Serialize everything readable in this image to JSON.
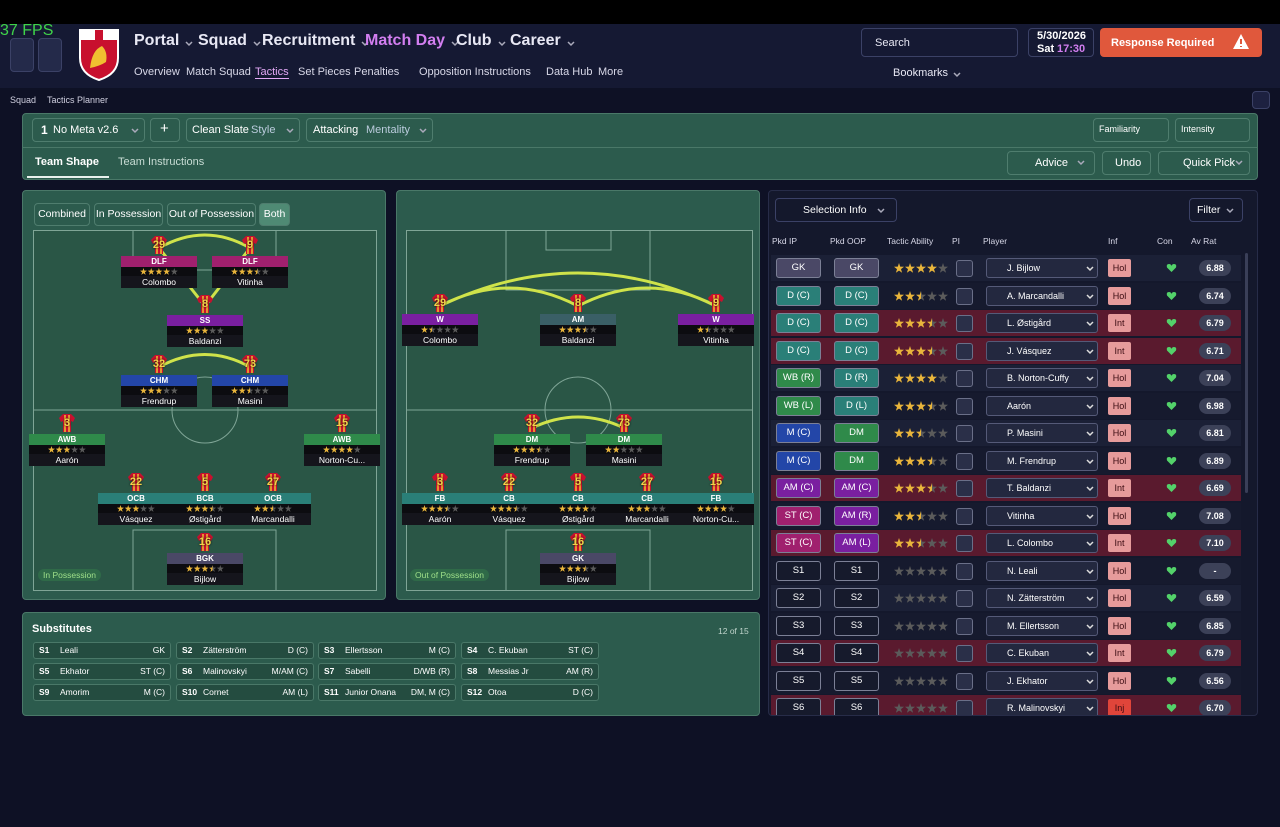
{
  "fps": "37 FPS",
  "nav": {
    "main": [
      "Portal",
      "Squad",
      "Recruitment",
      "Match Day",
      "Club",
      "Career"
    ],
    "active_main": 3,
    "sub": [
      "Overview",
      "Match Squad",
      "Tactics",
      "Set Pieces",
      "Penalties",
      "Opposition Instructions",
      "Data Hub",
      "More"
    ],
    "active_sub": 2
  },
  "header": {
    "search": "Search",
    "date": "5/30/2026",
    "day": "Sat",
    "time": "17:30",
    "alert": "Response Required",
    "bookmarks": "Bookmarks"
  },
  "breadcrumb": [
    "Squad",
    "Tactics Planner"
  ],
  "toolbar": {
    "slot": "1",
    "tactic": "No Meta v2.6",
    "add": "+",
    "style": "Clean Slate",
    "style_label": "Style",
    "mentality": "Attacking",
    "mentality_label": "Mentality",
    "familiarity": "Familiarity",
    "intensity": "Intensity"
  },
  "tabs": [
    "Team Shape",
    "Team Instructions"
  ],
  "active_tab": 0,
  "actions": [
    "Advice",
    "Undo",
    "Quick Pick"
  ],
  "view_filters": [
    "Combined",
    "In Possession",
    "Out of Possession",
    "Both"
  ],
  "active_filter": 3,
  "pitches": [
    {
      "label": "In Possession",
      "players": [
        {
          "number": 29,
          "role": "DLF",
          "name": "Colombo",
          "rating": 4,
          "color": "#a0206e"
        },
        {
          "number": 9,
          "role": "DLF",
          "name": "Vitinha",
          "rating": 3.5,
          "color": "#a0206e"
        },
        {
          "number": 8,
          "role": "SS",
          "name": "Baldanzi",
          "rating": 3,
          "color": "#7a1fa0"
        },
        {
          "number": 32,
          "role": "CHM",
          "name": "Frendrup",
          "rating": 3,
          "color": "#2346a8"
        },
        {
          "number": 73,
          "role": "CHM",
          "name": "Masini",
          "rating": 2.5,
          "color": "#2346a8"
        },
        {
          "number": 3,
          "role": "AWB",
          "name": "Aarón",
          "rating": 3,
          "color": "#2f8a4a"
        },
        {
          "number": 15,
          "role": "AWB",
          "name": "Norton-Cu...",
          "rating": 4,
          "color": "#2f8a4a"
        },
        {
          "number": 22,
          "role": "OCB",
          "name": "Vásquez",
          "rating": 3,
          "color": "#2a7f78"
        },
        {
          "number": 5,
          "role": "BCB",
          "name": "Østigård",
          "rating": 3.5,
          "color": "#2a7f78"
        },
        {
          "number": 27,
          "role": "OCB",
          "name": "Marcandalli",
          "rating": 2.5,
          "color": "#2a7f78"
        },
        {
          "number": 16,
          "role": "BGK",
          "name": "Bijlow",
          "rating": 3.5,
          "color": "#4a4866"
        }
      ]
    },
    {
      "label": "Out of Possession",
      "players": [
        {
          "number": 29,
          "role": "W",
          "name": "Colombo",
          "rating": 1.5,
          "color": "#7a1fa0"
        },
        {
          "number": 8,
          "role": "AM",
          "name": "Baldanzi",
          "rating": 3.5,
          "color": "#3a5f66"
        },
        {
          "number": 9,
          "role": "W",
          "name": "Vitinha",
          "rating": 1.5,
          "color": "#7a1fa0"
        },
        {
          "number": 32,
          "role": "DM",
          "name": "Frendrup",
          "rating": 3.5,
          "color": "#2f8a4a"
        },
        {
          "number": 73,
          "role": "DM",
          "name": "Masini",
          "rating": 2,
          "color": "#2f8a4a"
        },
        {
          "number": 3,
          "role": "FB",
          "name": "Aarón",
          "rating": 3.5,
          "color": "#2a7f78"
        },
        {
          "number": 22,
          "role": "CB",
          "name": "Vásquez",
          "rating": 3.5,
          "color": "#2a7f78"
        },
        {
          "number": 5,
          "role": "CB",
          "name": "Østigård",
          "rating": 4,
          "color": "#2a7f78"
        },
        {
          "number": 27,
          "role": "CB",
          "name": "Marcandalli",
          "rating": 3,
          "color": "#2a7f78"
        },
        {
          "number": 15,
          "role": "FB",
          "name": "Norton-Cu...",
          "rating": 4,
          "color": "#2a7f78"
        },
        {
          "number": 16,
          "role": "GK",
          "name": "Bijlow",
          "rating": 3.5,
          "color": "#4a4866"
        }
      ]
    }
  ],
  "substitutes": {
    "title": "Substitutes",
    "count": "12 of 15",
    "items": [
      [
        "S1",
        "Leali",
        "GK"
      ],
      [
        "S2",
        "Zätterström",
        "D (C)"
      ],
      [
        "S3",
        "Ellertsson",
        "M (C)"
      ],
      [
        "S4",
        "C. Ekuban",
        "ST (C)"
      ],
      [
        "S5",
        "Ekhator",
        "ST (C)"
      ],
      [
        "S6",
        "Malinovskyi",
        "M/AM (C)"
      ],
      [
        "S7",
        "Sabelli",
        "D/WB (R)"
      ],
      [
        "S8",
        "Messias Jr",
        "AM (R)"
      ],
      [
        "S9",
        "Amorim",
        "M (C)"
      ],
      [
        "S10",
        "Cornet",
        "AM (L)"
      ],
      [
        "S11",
        "Junior Onana",
        "DM, M (C)"
      ],
      [
        "S12",
        "Otoa",
        "D (C)"
      ]
    ]
  },
  "selection": {
    "title": "Selection Info",
    "filter": "Filter",
    "columns": [
      "Pkd IP",
      "Pkd OOP",
      "Tactic Ability",
      "PI",
      "Player",
      "Inf",
      "Con",
      "Av Rat"
    ],
    "rows": [
      {
        "ip": "GK",
        "ip_color": "#4a4866",
        "oop": "GK",
        "oop_color": "#4a4866",
        "ability": 4,
        "player": "J. Bijlow",
        "inf": "Hol",
        "av": "6.88",
        "tint": false
      },
      {
        "ip": "D (C)",
        "ip_color": "#2a7f78",
        "oop": "D (C)",
        "oop_color": "#2a7f78",
        "ability": 2.5,
        "player": "A. Marcandalli",
        "inf": "Hol",
        "av": "6.74",
        "tint": false
      },
      {
        "ip": "D (C)",
        "ip_color": "#2a7f78",
        "oop": "D (C)",
        "oop_color": "#2a7f78",
        "ability": 3.5,
        "player": "L. Østigård",
        "inf": "Int",
        "av": "6.79",
        "tint": true
      },
      {
        "ip": "D (C)",
        "ip_color": "#2a7f78",
        "oop": "D (C)",
        "oop_color": "#2a7f78",
        "ability": 3.5,
        "player": "J. Vásquez",
        "inf": "Int",
        "av": "6.71",
        "tint": true
      },
      {
        "ip": "WB (R)",
        "ip_color": "#2f8a4a",
        "oop": "D (R)",
        "oop_color": "#2a7f78",
        "ability": 4,
        "player": "B. Norton-Cuffy",
        "inf": "Hol",
        "av": "7.04",
        "tint": false
      },
      {
        "ip": "WB (L)",
        "ip_color": "#2f8a4a",
        "oop": "D (L)",
        "oop_color": "#2a7f78",
        "ability": 3.5,
        "player": "Aarón",
        "inf": "Hol",
        "av": "6.98",
        "tint": false
      },
      {
        "ip": "M (C)",
        "ip_color": "#2346a8",
        "oop": "DM",
        "oop_color": "#2f8a4a",
        "ability": 2.5,
        "player": "P. Masini",
        "inf": "Hol",
        "av": "6.81",
        "tint": false
      },
      {
        "ip": "M (C)",
        "ip_color": "#2346a8",
        "oop": "DM",
        "oop_color": "#2f8a4a",
        "ability": 3.5,
        "player": "M. Frendrup",
        "inf": "Hol",
        "av": "6.89",
        "tint": false
      },
      {
        "ip": "AM (C)",
        "ip_color": "#7a1fa0",
        "oop": "AM (C)",
        "oop_color": "#7a1fa0",
        "ability": 3.5,
        "player": "T. Baldanzi",
        "inf": "Int",
        "av": "6.69",
        "tint": true
      },
      {
        "ip": "ST (C)",
        "ip_color": "#a0206e",
        "oop": "AM (R)",
        "oop_color": "#7a1fa0",
        "ability": 2.5,
        "player": "Vitinha",
        "inf": "Hol",
        "av": "7.08",
        "tint": false
      },
      {
        "ip": "ST (C)",
        "ip_color": "#a0206e",
        "oop": "AM (L)",
        "oop_color": "#7a1fa0",
        "ability": 2.5,
        "player": "L. Colombo",
        "inf": "Int",
        "av": "7.10",
        "tint": true
      },
      {
        "ip": "S1",
        "ip_color": "#161a2c",
        "oop": "S1",
        "oop_color": "#161a2c",
        "ability": 0,
        "player": "N. Leali",
        "inf": "Hol",
        "av": "-",
        "tint": false
      },
      {
        "ip": "S2",
        "ip_color": "#161a2c",
        "oop": "S2",
        "oop_color": "#161a2c",
        "ability": 0,
        "player": "N. Zätterström",
        "inf": "Hol",
        "av": "6.59",
        "tint": false
      },
      {
        "ip": "S3",
        "ip_color": "#161a2c",
        "oop": "S3",
        "oop_color": "#161a2c",
        "ability": 0,
        "player": "M. Ellertsson",
        "inf": "Hol",
        "av": "6.85",
        "tint": false
      },
      {
        "ip": "S4",
        "ip_color": "#161a2c",
        "oop": "S4",
        "oop_color": "#161a2c",
        "ability": 0,
        "player": "C. Ekuban",
        "inf": "Int",
        "av": "6.79",
        "tint": true
      },
      {
        "ip": "S5",
        "ip_color": "#161a2c",
        "oop": "S5",
        "oop_color": "#161a2c",
        "ability": 0,
        "player": "J. Ekhator",
        "inf": "Hol",
        "av": "6.56",
        "tint": false
      },
      {
        "ip": "S6",
        "ip_color": "#161a2c",
        "oop": "S6",
        "oop_color": "#161a2c",
        "ability": 0,
        "player": "R. Malinovskyi",
        "inf": "Inj",
        "av": "6.70",
        "tint": true
      }
    ]
  }
}
